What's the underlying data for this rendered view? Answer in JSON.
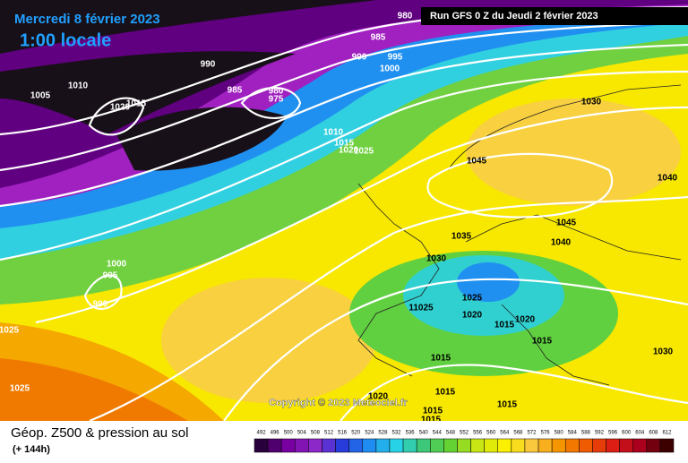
{
  "header": {
    "date": "Mercredi 8 février 2023",
    "time": "1:00 locale",
    "run": "Run GFS 0 Z du Jeudi 2 février 2023"
  },
  "copyright": "Copyright © 2023 Meteociel.fr",
  "footer": {
    "title": "Géop. Z500 & pression au sol",
    "lead": "(+ 144h)"
  },
  "isobar_labels": [
    "980",
    "985",
    "990",
    "995",
    "1000",
    "990",
    "985",
    "980",
    "975",
    "1005",
    "1010",
    "1020",
    "1015",
    "1010",
    "1015",
    "1020",
    "1025",
    "1030",
    "1045",
    "1040",
    "1045",
    "1040",
    "1035",
    "1030",
    "1025",
    "1020",
    "1015",
    "1020",
    "1015",
    "1030",
    "11025",
    "1015",
    "1015",
    "1020",
    "1015",
    "1015",
    "1015",
    "1000",
    "995",
    "990",
    "1025",
    "1025"
  ],
  "scale_labels": [
    "492",
    "496",
    "500",
    "504",
    "508",
    "512",
    "516",
    "520",
    "524",
    "528",
    "532",
    "536",
    "540",
    "544",
    "548",
    "552",
    "556",
    "560",
    "564",
    "568",
    "572",
    "576",
    "580",
    "584",
    "588",
    "592",
    "596",
    "600",
    "604",
    "608",
    "612"
  ]
}
